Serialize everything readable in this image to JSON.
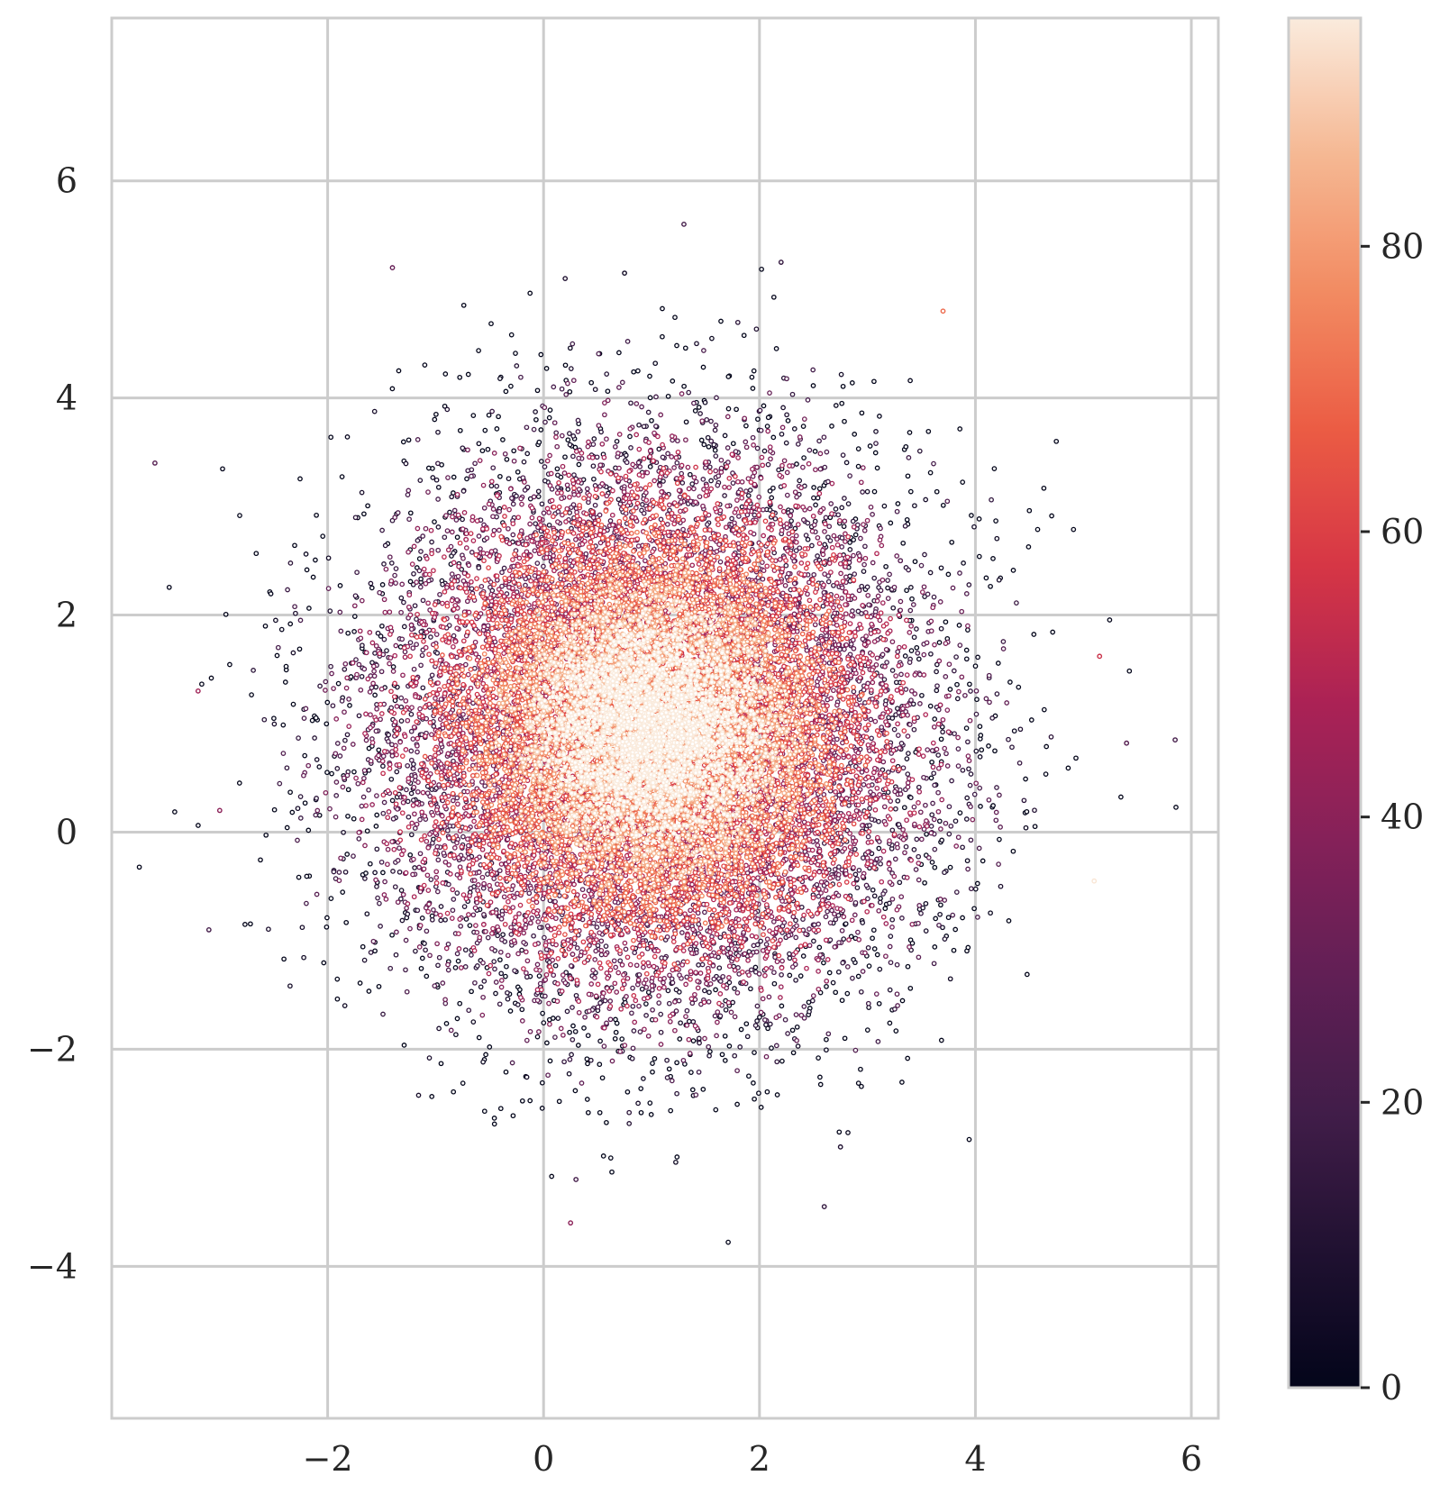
{
  "chart_data": {
    "type": "scatter",
    "title": "",
    "xlabel": "",
    "ylabel": "",
    "xlim": [
      -4.0,
      6.25
    ],
    "ylim": [
      -5.4,
      7.5
    ],
    "xticks": [
      -2,
      0,
      2,
      4,
      6
    ],
    "yticks": [
      -4,
      -2,
      0,
      2,
      4,
      6
    ],
    "xtick_labels": [
      "−2",
      "0",
      "2",
      "4",
      "6"
    ],
    "ytick_labels": [
      "−4",
      "−2",
      "0",
      "2",
      "4",
      "6"
    ],
    "grid": true,
    "legend": "none",
    "distribution": {
      "kind": "bivariate-normal",
      "center": [
        1.0,
        0.95
      ],
      "std": [
        1.15,
        1.15
      ],
      "approx_point_count": 20000,
      "color_value_meaning": "100 × (1 − normalized radial distance from center)"
    },
    "outlier_points": [
      {
        "x": -3.6,
        "y": 3.4,
        "c": 25
      },
      {
        "x": 1.3,
        "y": 5.6,
        "c": 20
      },
      {
        "x": -1.4,
        "y": 5.2,
        "c": 30
      },
      {
        "x": 0.2,
        "y": 5.1,
        "c": 10
      },
      {
        "x": 0.75,
        "y": 5.15,
        "c": 5
      },
      {
        "x": 2.2,
        "y": 5.25,
        "c": 15
      },
      {
        "x": 3.7,
        "y": 4.8,
        "c": 70
      },
      {
        "x": 5.85,
        "y": 0.85,
        "c": 20
      },
      {
        "x": 5.4,
        "y": 0.82,
        "c": 25
      },
      {
        "x": 5.15,
        "y": 1.62,
        "c": 55
      },
      {
        "x": 5.1,
        "y": -0.45,
        "c": 95
      },
      {
        "x": -3.1,
        "y": -0.9,
        "c": 20
      },
      {
        "x": -3.0,
        "y": 0.2,
        "c": 40
      },
      {
        "x": -3.2,
        "y": 1.3,
        "c": 45
      },
      {
        "x": 0.25,
        "y": -3.6,
        "c": 40
      },
      {
        "x": 0.3,
        "y": -3.2,
        "c": 20
      },
      {
        "x": 2.6,
        "y": -3.45,
        "c": 15
      },
      {
        "x": 2.75,
        "y": -2.9,
        "c": 10
      }
    ],
    "colorbar": {
      "colormap": "rocket",
      "min": 0,
      "max": 96,
      "ticks": [
        0,
        20,
        40,
        60,
        80
      ],
      "tick_labels": [
        "0",
        "20",
        "40",
        "60",
        "80"
      ]
    }
  },
  "colors": {
    "grid": "#cccccc",
    "tick_text": "#262626",
    "marker_edge_alpha": 0.8
  }
}
